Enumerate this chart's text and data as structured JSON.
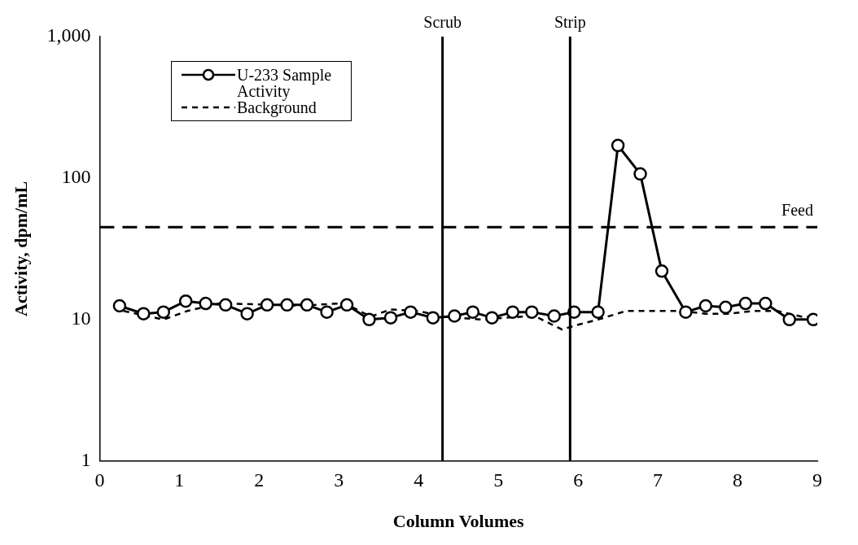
{
  "chart_data": {
    "type": "line",
    "xlabel": "Column Volumes",
    "ylabel": "Activity, dpm/mL",
    "xlim": [
      0,
      9
    ],
    "xticks": [
      0,
      1,
      2,
      3,
      4,
      5,
      6,
      7,
      8,
      9
    ],
    "ylim": [
      1,
      1000
    ],
    "yticks": [
      1,
      10,
      100,
      {
        "value": 1000,
        "label": "1,000"
      }
    ],
    "log": "y",
    "grid": false,
    "legend": "top left",
    "series": [
      {
        "name": "U-233 Sample Activity",
        "color": "#000000",
        "marker": "circle",
        "line_style": "solid",
        "x": [
          0.25,
          0.55,
          0.8,
          1.08,
          1.33,
          1.58,
          1.85,
          2.1,
          2.35,
          2.6,
          2.85,
          3.1,
          3.38,
          3.65,
          3.9,
          4.18,
          4.45,
          4.68,
          4.92,
          5.18,
          5.42,
          5.7,
          5.95,
          6.25,
          6.5,
          6.78,
          7.05,
          7.35,
          7.6,
          7.85,
          8.1,
          8.35,
          8.65,
          8.95
        ],
        "values": [
          12.5,
          11,
          11.3,
          13.5,
          13,
          12.7,
          11,
          12.7,
          12.7,
          12.7,
          11.3,
          12.7,
          10,
          10.3,
          11.3,
          10.3,
          10.6,
          11.3,
          10.3,
          11.3,
          11.3,
          10.6,
          11.3,
          11.3,
          170,
          107,
          22,
          11.3,
          12.5,
          12.2,
          13,
          13,
          10,
          10
        ]
      },
      {
        "name": "Background",
        "color": "#000000",
        "marker": "none",
        "line_style": "dotted",
        "x": [
          0.3,
          0.8,
          1.1,
          1.5,
          2,
          2.5,
          3,
          3.1,
          3.4,
          3.65,
          4,
          4.3,
          4.8,
          5.3,
          5.5,
          5.8,
          6,
          6.25,
          6.6,
          7.3,
          7.6,
          7.9,
          8.2,
          8.5,
          8.8,
          9
        ],
        "values": [
          11.5,
          10,
          11.5,
          13,
          12.8,
          12.5,
          13,
          12.8,
          10.5,
          11.8,
          11.5,
          10.5,
          10,
          10.5,
          10.3,
          8.5,
          9.2,
          10,
          11.5,
          11.5,
          11,
          11,
          11.5,
          11.5,
          10.5,
          10.5
        ]
      }
    ],
    "ref_lines": [
      {
        "axis": "x",
        "value": 4.3,
        "label": "Scrub",
        "color": "#000000",
        "line_style": "solid"
      },
      {
        "axis": "x",
        "value": 5.9,
        "label": "Strip",
        "color": "#000000",
        "line_style": "solid"
      },
      {
        "axis": "y",
        "value": 45,
        "label": "Feed",
        "color": "#000000",
        "line_style": "dashed"
      }
    ]
  }
}
